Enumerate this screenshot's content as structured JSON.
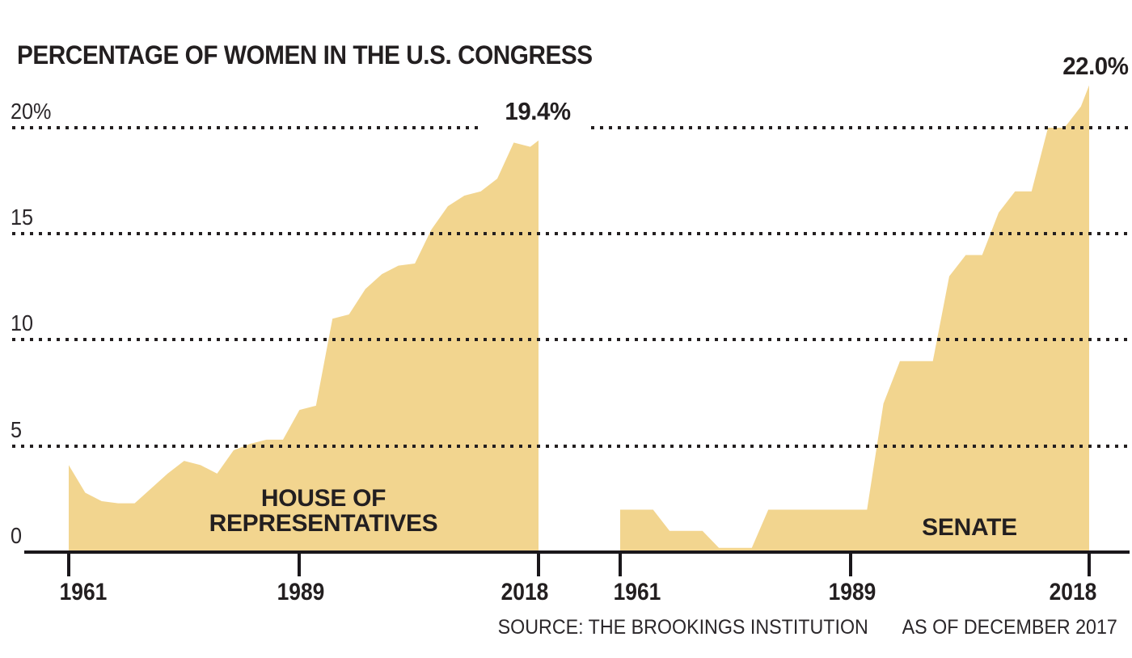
{
  "title": "PERCENTAGE OF WOMEN IN THE U.S. CONGRESS",
  "footer": {
    "source": "SOURCE: THE BROOKINGS INSTITUTION",
    "as_of": "AS OF DECEMBER 2017"
  },
  "colors": {
    "area_fill": "#F2D58F",
    "ink": "#231F20",
    "background": "#FFFFFF"
  },
  "y_axis": {
    "min": 0,
    "max": 20,
    "unit": "percent",
    "tick_labels": [
      "20%",
      "15",
      "10",
      "5",
      "0"
    ],
    "gridline_values": [
      20,
      15,
      10,
      5
    ],
    "grid_style": "dotted"
  },
  "chart_data": [
    {
      "type": "area",
      "name": "House of Representatives",
      "area_label_lines": [
        "HOUSE OF",
        "REPRESENTATIVES"
      ],
      "peak_annotation": "19.4%",
      "x_tick_labels": [
        "1961",
        "1989",
        "2018"
      ],
      "x_tick_years": [
        1961,
        1989,
        2018
      ],
      "xlim": [
        1961,
        2018
      ],
      "ylim": [
        0,
        20
      ],
      "x": [
        1961,
        1963,
        1965,
        1967,
        1969,
        1971,
        1973,
        1975,
        1977,
        1979,
        1981,
        1983,
        1985,
        1987,
        1989,
        1991,
        1993,
        1995,
        1997,
        1999,
        2001,
        2003,
        2005,
        2007,
        2009,
        2011,
        2013,
        2015,
        2017,
        2018
      ],
      "values": [
        4.1,
        2.8,
        2.4,
        2.3,
        2.3,
        3.0,
        3.7,
        4.3,
        4.1,
        3.7,
        4.8,
        5.1,
        5.3,
        5.3,
        6.7,
        6.9,
        11.0,
        11.2,
        12.4,
        13.1,
        13.5,
        13.6,
        15.2,
        16.3,
        16.8,
        17.0,
        17.6,
        19.3,
        19.1,
        19.4
      ]
    },
    {
      "type": "area",
      "name": "Senate",
      "area_label_lines": [
        "SENATE"
      ],
      "peak_annotation": "22.0%",
      "x_tick_labels": [
        "1961",
        "1989",
        "2018"
      ],
      "x_tick_years": [
        1961,
        1989,
        2018
      ],
      "xlim": [
        1961,
        2018
      ],
      "ylim": [
        0,
        22
      ],
      "x": [
        1961,
        1963,
        1965,
        1967,
        1969,
        1971,
        1973,
        1975,
        1977,
        1979,
        1981,
        1983,
        1985,
        1987,
        1989,
        1991,
        1993,
        1995,
        1997,
        1999,
        2001,
        2003,
        2005,
        2007,
        2009,
        2011,
        2013,
        2015,
        2017,
        2018
      ],
      "values": [
        2,
        2,
        2,
        1,
        1,
        1,
        0.2,
        0.2,
        0.2,
        2,
        2,
        2,
        2,
        2,
        2,
        2,
        7,
        9,
        9,
        9,
        13,
        14,
        14,
        16,
        17,
        17,
        20,
        20,
        21,
        22
      ]
    }
  ]
}
